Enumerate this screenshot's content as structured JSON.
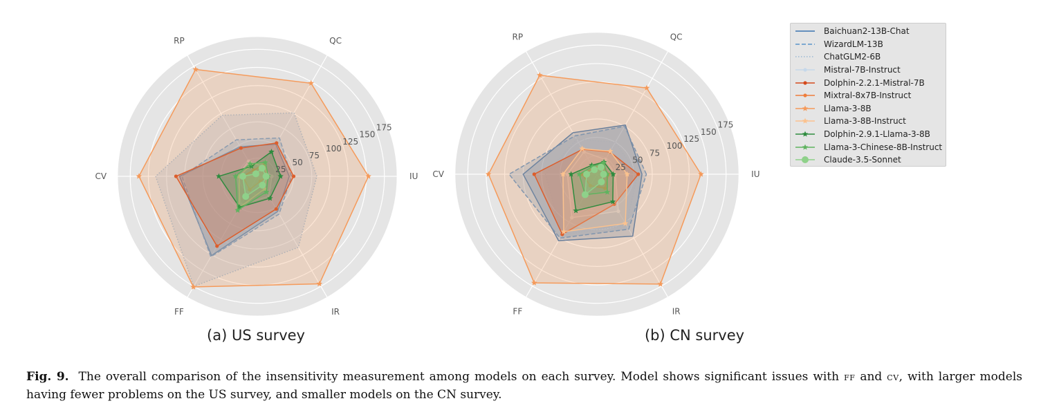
{
  "figure": {
    "caption_label": "Fig. 9.",
    "caption_part1": "The overall comparison of the insensitivity measurement among models on each survey. Model shows significant issues with ",
    "caption_sc1": "FF",
    "caption_part2": " and ",
    "caption_sc2": "CV",
    "caption_part3": ", with larger models having fewer problems on the US survey, and smaller models on the CN survey."
  },
  "legend": {
    "placement": "right",
    "items": [
      {
        "name": "Baichuan2-13B-Chat",
        "color": "#3a75b0",
        "style": "solid",
        "marker": "none"
      },
      {
        "name": "WizardLM-13B",
        "color": "#5a93c9",
        "style": "dashed",
        "marker": "none"
      },
      {
        "name": "ChatGLM2-6B",
        "color": "#9ab8d3",
        "style": "dotted",
        "marker": "none"
      },
      {
        "name": "Mistral-7B-Instruct",
        "color": "#c6d8ea",
        "style": "solid",
        "marker": "dot"
      },
      {
        "name": "Dolphin-2.2.1-Mistral-7B",
        "color": "#d44a1c",
        "style": "solid",
        "marker": "dot"
      },
      {
        "name": "Mixtral-8x7B-Instruct",
        "color": "#ef7d3b",
        "style": "solid",
        "marker": "dot"
      },
      {
        "name": "Llama-3-8B",
        "color": "#f59a5a",
        "style": "solid",
        "marker": "star"
      },
      {
        "name": "Llama-3-8B-Instruct",
        "color": "#fbc28e",
        "style": "solid",
        "marker": "star"
      },
      {
        "name": "Dolphin-2.9.1-Llama-3-8B",
        "color": "#2e8b3e",
        "style": "solid",
        "marker": "star"
      },
      {
        "name": "Llama-3-Chinese-8B-Instruct",
        "color": "#5fb35f",
        "style": "solid",
        "marker": "star"
      },
      {
        "name": "Claude-3.5-Sonnet",
        "color": "#8fd18a",
        "style": "solid",
        "marker": "circle"
      }
    ]
  },
  "chart_data": [
    {
      "type": "radar",
      "title": "(a) US survey",
      "axes": [
        "IU",
        "QC",
        "RP",
        "CV",
        "FF",
        "IR"
      ],
      "rticks": [
        25,
        50,
        75,
        100,
        125,
        150,
        175
      ],
      "rlim": [
        0,
        184
      ],
      "grid": true,
      "series": [
        {
          "name": "Baichuan2-13B-Chat",
          "values": [
            44,
            51,
            47,
            107,
            126,
            56
          ]
        },
        {
          "name": "WizardLM-13B",
          "values": [
            47,
            61,
            58,
            104,
            128,
            60
          ]
        },
        {
          "name": "ChatGLM2-6B",
          "values": [
            82,
            101,
            97,
            140,
            175,
            113
          ]
        },
        {
          "name": "Mistral-7B-Instruct",
          "values": [
            20,
            15,
            24,
            28,
            45,
            32
          ]
        },
        {
          "name": "Dolphin-2.2.1-Mistral-7B",
          "values": [
            50,
            53,
            45,
            112,
            111,
            52
          ]
        },
        {
          "name": "Mixtral-8x7B-Instruct",
          "values": [
            14,
            20,
            10,
            20,
            21,
            8
          ]
        },
        {
          "name": "Llama-3-8B",
          "values": [
            153,
            148,
            170,
            163,
            176,
            171
          ]
        },
        {
          "name": "Llama-3-8B-Instruct",
          "values": [
            13,
            22,
            18,
            25,
            50,
            20
          ]
        },
        {
          "name": "Dolphin-2.9.1-Llama-3-8B",
          "values": [
            32,
            39,
            16,
            53,
            49,
            35
          ]
        },
        {
          "name": "Llama-3-Chinese-8B-Instruct",
          "values": [
            15,
            22,
            20,
            30,
            54,
            25
          ]
        },
        {
          "name": "Claude-3.5-Sonnet",
          "values": [
            12,
            13,
            4,
            20,
            32,
            14
          ]
        }
      ]
    },
    {
      "type": "radar",
      "title": "(b) CN survey",
      "axes": [
        "IU",
        "QC",
        "RP",
        "CV",
        "FF",
        "IR"
      ],
      "rticks": [
        25,
        50,
        75,
        100,
        125,
        150,
        175
      ],
      "rlim": [
        0,
        184
      ],
      "grid": true,
      "series": [
        {
          "name": "Baichuan2-13B-Chat",
          "values": [
            61,
            77,
            65,
            100,
            104,
            97
          ]
        },
        {
          "name": "WizardLM-13B",
          "values": [
            67,
            75,
            60,
            119,
            100,
            86
          ]
        },
        {
          "name": "ChatGLM2-6B",
          "values": [
            55,
            50,
            55,
            70,
            95,
            80
          ]
        },
        {
          "name": "Mistral-7B-Instruct",
          "values": [
            25,
            23,
            35,
            40,
            68,
            58
          ]
        },
        {
          "name": "Dolphin-2.2.1-Mistral-7B",
          "values": [
            56,
            35,
            39,
            85,
            94,
            47
          ]
        },
        {
          "name": "Mixtral-8x7B-Instruct",
          "values": [
            16,
            14,
            10,
            20,
            18,
            22
          ]
        },
        {
          "name": "Llama-3-8B",
          "values": [
            141,
            135,
            155,
            147,
            170,
            172
          ]
        },
        {
          "name": "Llama-3-8B-Instruct",
          "values": [
            41,
            36,
            40,
            46,
            90,
            77
          ]
        },
        {
          "name": "Dolphin-2.9.1-Llama-3-8B",
          "values": [
            22,
            19,
            14,
            35,
            57,
            43
          ]
        },
        {
          "name": "Llama-3-Chinese-8B-Instruct",
          "values": [
            14,
            18,
            12,
            24,
            32,
            28
          ]
        },
        {
          "name": "Claude-3.5-Sonnet",
          "values": [
            9,
            11,
            7,
            14,
            32,
            12
          ]
        }
      ]
    }
  ]
}
